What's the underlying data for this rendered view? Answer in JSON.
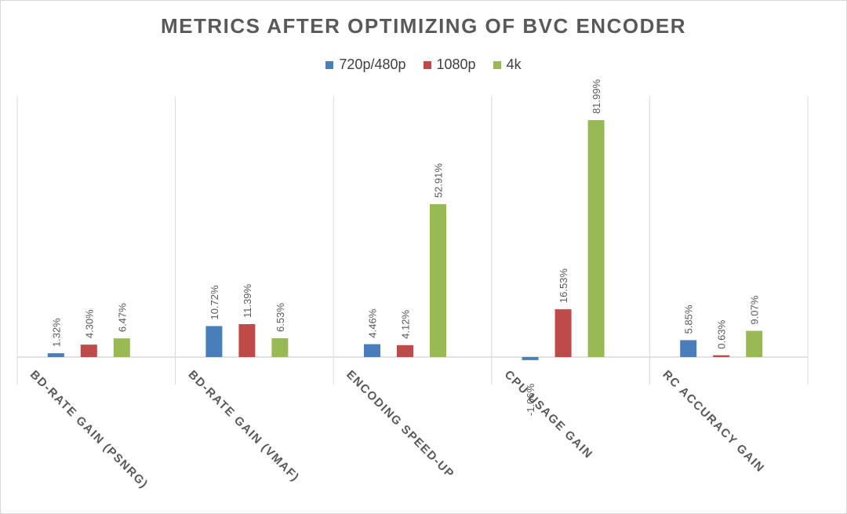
{
  "chart_data": {
    "type": "bar",
    "title": "METRICS AFTER OPTIMIZING OF BVC ENCODER",
    "categories": [
      "BD-RATE GAIN (PSNRG)",
      "BD-RATE GAIN (VMAF)",
      "ENCODING SPEED-UP",
      "CPU USAGE GAIN",
      "RC ACCURACY GAIN"
    ],
    "series": [
      {
        "name": "720p/480p",
        "color": "#4a7ebb",
        "values": [
          1.32,
          10.72,
          4.46,
          -1.06,
          5.85
        ],
        "labels": [
          "1.32%",
          "10.72%",
          "4.46%",
          "-1.06%",
          "5.85%"
        ]
      },
      {
        "name": "1080p",
        "color": "#be4b48",
        "values": [
          4.3,
          11.39,
          4.12,
          16.53,
          0.63
        ],
        "labels": [
          "4.30%",
          "11.39%",
          "4.12%",
          "16.53%",
          "0.63%"
        ]
      },
      {
        "name": "4k",
        "color": "#98b954",
        "values": [
          6.47,
          6.53,
          52.91,
          81.99,
          9.07
        ],
        "labels": [
          "6.47%",
          "6.53%",
          "52.91%",
          "81.99%",
          "9.07%"
        ]
      }
    ],
    "xlabel": "",
    "ylabel": "",
    "ylim": [
      -10,
      90
    ],
    "legend": "top"
  }
}
